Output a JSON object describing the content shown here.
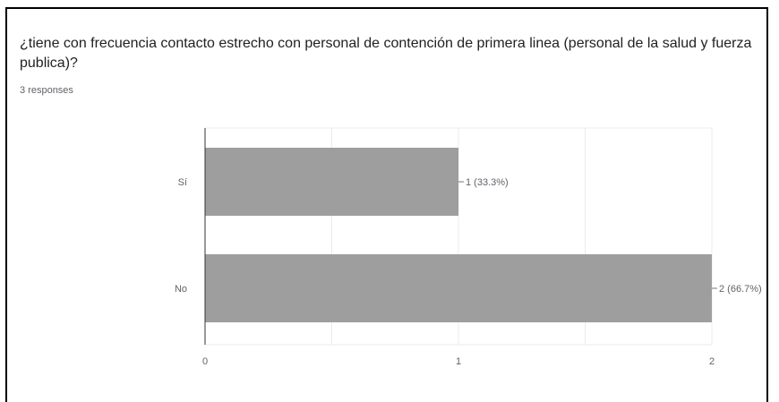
{
  "question": {
    "title": "¿tiene con frecuencia contacto estrecho con personal de contención de  primera linea (personal de la salud y fuerza publica)?",
    "responses_label": "3 responses"
  },
  "colors": {
    "bar": "#9e9e9e",
    "grid": "#ebebeb",
    "axis": "#333333"
  },
  "chart_data": {
    "type": "bar",
    "orientation": "horizontal",
    "categories": [
      "Sí",
      "No"
    ],
    "values": [
      1,
      2
    ],
    "data_labels": [
      "1 (33.3%)",
      "2 (66.7%)"
    ],
    "xlim": [
      0,
      2
    ],
    "x_ticks": [
      "0",
      "1",
      "2"
    ],
    "grid": true
  }
}
